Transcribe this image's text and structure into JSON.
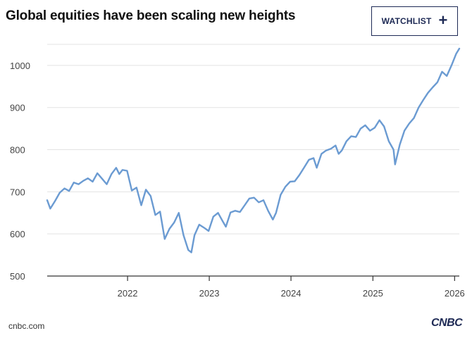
{
  "header": {
    "title": "Global equities have been scaling new heights",
    "watchlist_label": "WATCHLIST",
    "watchlist_icon": "plus-icon"
  },
  "footer": {
    "source": "cnbc.com",
    "logo": "CNBC"
  },
  "colors": {
    "line": "#6b9bd2",
    "grid": "#e3e3e3",
    "axis": "#333333",
    "brand": "#1e2a55"
  },
  "chart_data": {
    "type": "line",
    "title": "",
    "xlabel": "",
    "ylabel": "",
    "grid": true,
    "ylim": [
      500,
      1050
    ],
    "xlim": [
      "2021-01-07",
      "2026-01-22"
    ],
    "yticks": [
      500,
      600,
      700,
      800,
      900,
      1000
    ],
    "xticks": [
      "2022",
      "2023",
      "2024",
      "2025",
      "2026"
    ],
    "series": [
      {
        "x": [
          "2021-01-07",
          "2021-01-21",
          "2021-02-11",
          "2021-03-04",
          "2021-03-25",
          "2021-04-15",
          "2021-05-06",
          "2021-05-27",
          "2021-06-17",
          "2021-07-08",
          "2021-07-29",
          "2021-08-19",
          "2021-09-09",
          "2021-09-30",
          "2021-10-21",
          "2021-11-11",
          "2021-11-25",
          "2021-12-09",
          "2021-12-30",
          "2022-01-20",
          "2022-02-10",
          "2022-03-03",
          "2022-03-24",
          "2022-04-14",
          "2022-05-05",
          "2022-05-26",
          "2022-06-16",
          "2022-07-07",
          "2022-07-28",
          "2022-08-18",
          "2022-09-08",
          "2022-09-29",
          "2022-10-13",
          "2022-10-27",
          "2022-11-17",
          "2022-12-08",
          "2022-12-29",
          "2023-01-19",
          "2023-02-09",
          "2023-03-02",
          "2023-03-16",
          "2023-04-06",
          "2023-04-27",
          "2023-05-18",
          "2023-06-08",
          "2023-06-29",
          "2023-07-20",
          "2023-08-10",
          "2023-08-31",
          "2023-09-21",
          "2023-10-12",
          "2023-10-26",
          "2023-11-16",
          "2023-12-07",
          "2023-12-28",
          "2024-01-18",
          "2024-02-08",
          "2024-02-29",
          "2024-03-21",
          "2024-04-11",
          "2024-04-25",
          "2024-05-16",
          "2024-06-06",
          "2024-06-27",
          "2024-07-18",
          "2024-08-01",
          "2024-08-15",
          "2024-09-05",
          "2024-09-26",
          "2024-10-17",
          "2024-11-07",
          "2024-11-28",
          "2024-12-19",
          "2025-01-09",
          "2025-01-30",
          "2025-02-20",
          "2025-03-13",
          "2025-04-03",
          "2025-04-10",
          "2025-05-01",
          "2025-05-22",
          "2025-06-12",
          "2025-07-03",
          "2025-07-24",
          "2025-08-14",
          "2025-09-04",
          "2025-09-25",
          "2025-10-16",
          "2025-11-06",
          "2025-11-27",
          "2025-12-18",
          "2026-01-08",
          "2026-01-22"
        ],
        "y": [
          680,
          660,
          678,
          698,
          708,
          702,
          722,
          718,
          726,
          732,
          724,
          744,
          731,
          718,
          742,
          757,
          742,
          752,
          750,
          703,
          710,
          668,
          705,
          690,
          645,
          653,
          588,
          612,
          627,
          650,
          597,
          562,
          556,
          597,
          622,
          615,
          607,
          641,
          650,
          630,
          617,
          651,
          655,
          652,
          668,
          684,
          686,
          675,
          680,
          655,
          634,
          650,
          693,
          712,
          724,
          725,
          740,
          758,
          776,
          780,
          757,
          790,
          798,
          802,
          810,
          790,
          798,
          820,
          832,
          830,
          850,
          858,
          845,
          852,
          870,
          855,
          820,
          800,
          765,
          812,
          845,
          862,
          875,
          900,
          918,
          935,
          948,
          960,
          985,
          975,
          1000,
          1028,
          1040
        ]
      }
    ]
  }
}
